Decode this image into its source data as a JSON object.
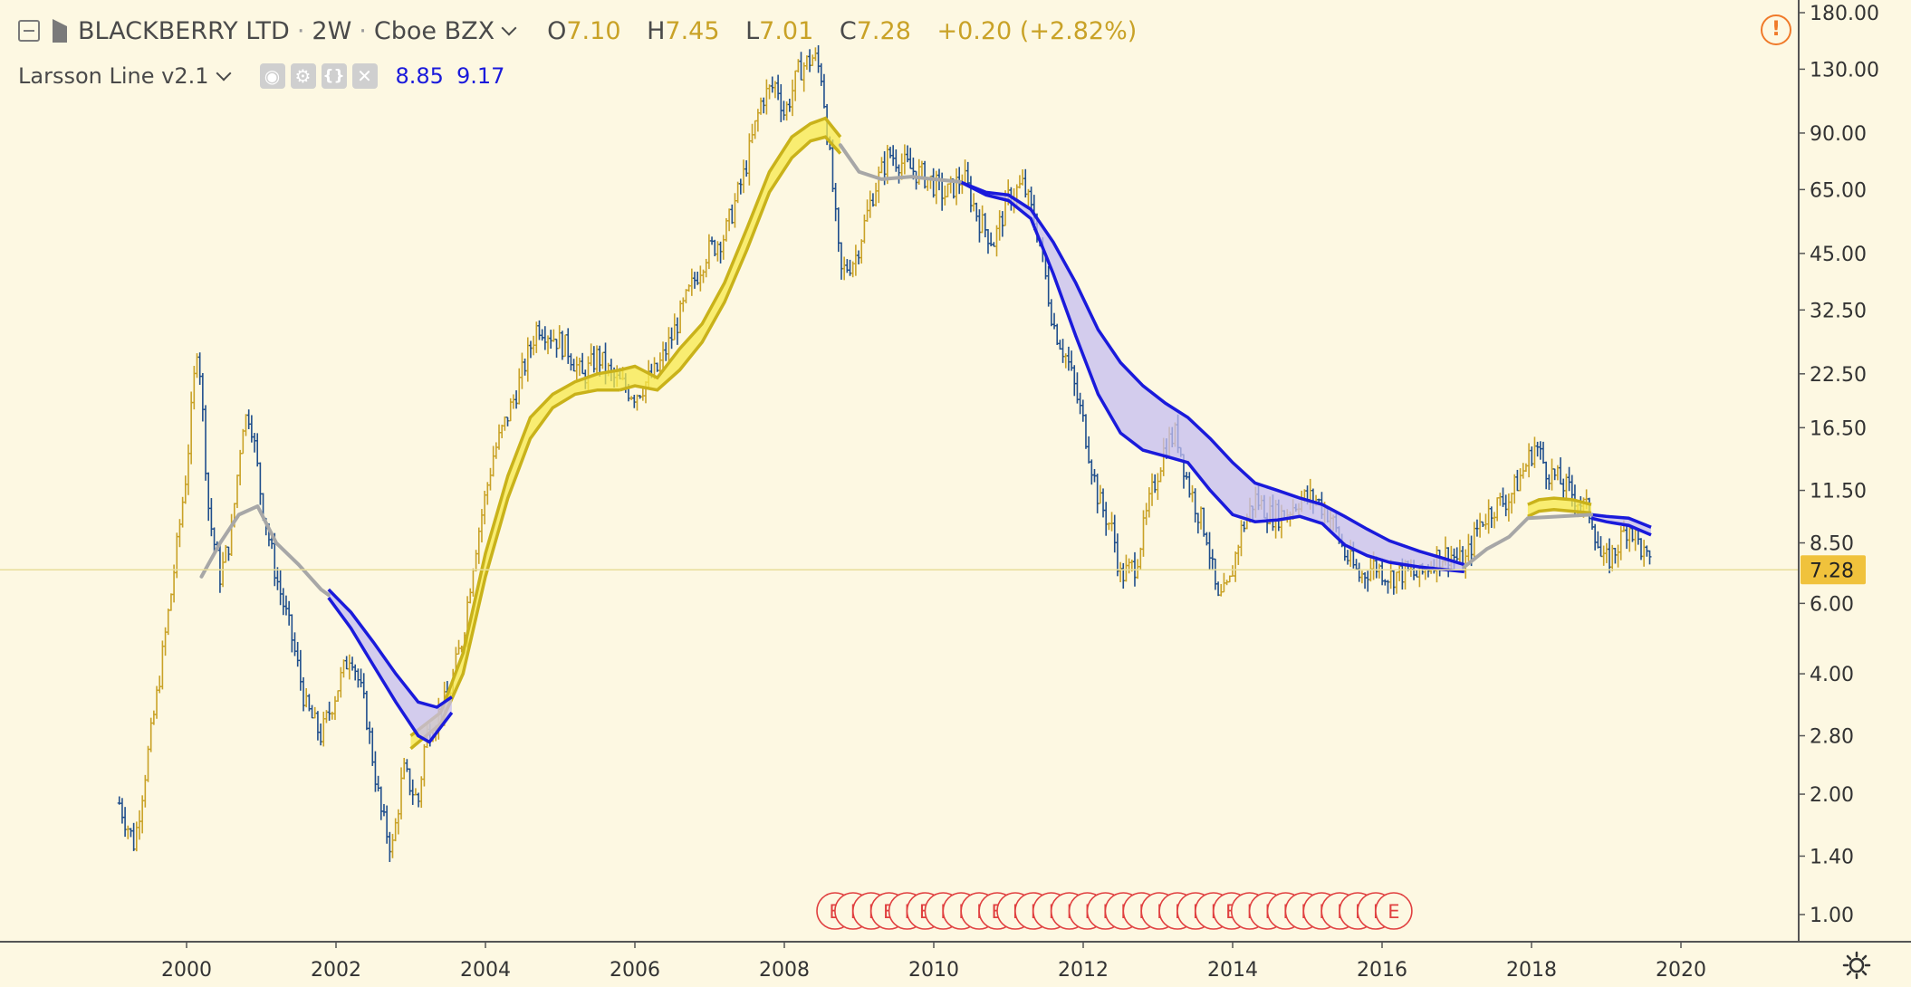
{
  "header": {
    "symbol": "BLACKBERRY LTD",
    "interval": "2W",
    "exchange": "Cboe BZX",
    "open_label": "O",
    "open": "7.10",
    "high_label": "H",
    "high": "7.45",
    "low_label": "L",
    "low": "7.01",
    "close_label": "C",
    "close": "7.28",
    "change": "+0.20 (+2.82%)"
  },
  "indicator": {
    "name": "Larsson Line v2.1",
    "value1": "8.85",
    "value2": "9.17",
    "buttons": [
      "eye-icon",
      "gear-icon",
      "braces-icon",
      "close-icon"
    ]
  },
  "alert_glyph": "!",
  "colors": {
    "background": "#fdf8e2",
    "bull": "#c9a227",
    "bear": "#1f4e8c",
    "yellow_band": "#f7e94b",
    "blue_band": "#1a1adb",
    "gray_line": "#a7a7a7",
    "price_label": "#f0c23c",
    "earnings": "#e04040"
  },
  "chart_data": {
    "type": "candlestick",
    "scale": "log",
    "last_price": "7.28",
    "y_ticks": [
      "180.00",
      "130.00",
      "90.00",
      "65.00",
      "45.00",
      "32.50",
      "22.50",
      "16.50",
      "11.50",
      "8.50",
      "6.00",
      "4.00",
      "2.80",
      "2.00",
      "1.40",
      "1.00"
    ],
    "x_ticks": [
      "2000",
      "2002",
      "2004",
      "2006",
      "2008",
      "2010",
      "2012",
      "2014",
      "2016",
      "2018",
      "2020"
    ],
    "price_path": [
      [
        1999.1,
        1.9
      ],
      [
        1999.3,
        1.5
      ],
      [
        1999.6,
        3.5
      ],
      [
        1999.8,
        6.5
      ],
      [
        2000.0,
        13
      ],
      [
        2000.15,
        28
      ],
      [
        2000.3,
        10
      ],
      [
        2000.45,
        7
      ],
      [
        2000.6,
        9
      ],
      [
        2000.75,
        17
      ],
      [
        2000.85,
        18
      ],
      [
        2001.0,
        11
      ],
      [
        2001.2,
        7
      ],
      [
        2001.4,
        5
      ],
      [
        2001.6,
        3.3
      ],
      [
        2001.8,
        2.8
      ],
      [
        2002.0,
        3.6
      ],
      [
        2002.2,
        4.6
      ],
      [
        2002.4,
        3.2
      ],
      [
        2002.6,
        1.8
      ],
      [
        2002.75,
        1.45
      ],
      [
        2002.9,
        2.3
      ],
      [
        2003.1,
        1.9
      ],
      [
        2003.2,
        2.8
      ],
      [
        2003.5,
        3.5
      ],
      [
        2003.7,
        5
      ],
      [
        2003.85,
        8
      ],
      [
        2004.1,
        14
      ],
      [
        2004.4,
        20
      ],
      [
        2004.7,
        30
      ],
      [
        2004.9,
        28
      ],
      [
        2005.1,
        26
      ],
      [
        2005.3,
        22
      ],
      [
        2005.5,
        25
      ],
      [
        2005.7,
        22
      ],
      [
        2006.0,
        20
      ],
      [
        2006.3,
        23
      ],
      [
        2006.5,
        28
      ],
      [
        2006.7,
        35
      ],
      [
        2006.95,
        45
      ],
      [
        2007.2,
        50
      ],
      [
        2007.45,
        70
      ],
      [
        2007.7,
        110
      ],
      [
        2007.9,
        120
      ],
      [
        2008.0,
        100
      ],
      [
        2008.2,
        130
      ],
      [
        2008.4,
        140
      ],
      [
        2008.5,
        125
      ],
      [
        2008.65,
        65
      ],
      [
        2008.75,
        40
      ],
      [
        2008.95,
        44
      ],
      [
        2009.2,
        65
      ],
      [
        2009.4,
        80
      ],
      [
        2009.7,
        73
      ],
      [
        2009.9,
        70
      ],
      [
        2010.15,
        63
      ],
      [
        2010.4,
        70
      ],
      [
        2010.6,
        55
      ],
      [
        2010.8,
        48
      ],
      [
        2011.0,
        62
      ],
      [
        2011.2,
        67
      ],
      [
        2011.4,
        50
      ],
      [
        2011.6,
        30
      ],
      [
        2011.8,
        24
      ],
      [
        2012.0,
        17
      ],
      [
        2012.2,
        11
      ],
      [
        2012.4,
        9
      ],
      [
        2012.5,
        7
      ],
      [
        2012.7,
        7.5
      ],
      [
        2012.9,
        11
      ],
      [
        2013.1,
        15
      ],
      [
        2013.25,
        16
      ],
      [
        2013.4,
        12
      ],
      [
        2013.55,
        10
      ],
      [
        2013.65,
        9
      ],
      [
        2013.8,
        6
      ],
      [
        2013.95,
        6.6
      ],
      [
        2014.1,
        9
      ],
      [
        2014.3,
        11
      ],
      [
        2014.5,
        10
      ],
      [
        2014.7,
        10
      ],
      [
        2014.9,
        11
      ],
      [
        2015.1,
        11
      ],
      [
        2015.3,
        10
      ],
      [
        2015.5,
        8
      ],
      [
        2015.7,
        7
      ],
      [
        2015.9,
        7.5
      ],
      [
        2016.1,
        7
      ],
      [
        2016.3,
        7.2
      ],
      [
        2016.5,
        7
      ],
      [
        2016.7,
        7.8
      ],
      [
        2016.9,
        8
      ],
      [
        2017.1,
        7.5
      ],
      [
        2017.3,
        9.5
      ],
      [
        2017.5,
        10.5
      ],
      [
        2017.7,
        11
      ],
      [
        2017.9,
        13
      ],
      [
        2018.05,
        15
      ],
      [
        2018.2,
        13
      ],
      [
        2018.4,
        12
      ],
      [
        2018.6,
        11
      ],
      [
        2018.8,
        10
      ],
      [
        2018.95,
        7.5
      ],
      [
        2019.1,
        8
      ],
      [
        2019.3,
        9.5
      ],
      [
        2019.5,
        8
      ],
      [
        2019.6,
        7.28
      ]
    ],
    "yellow_band_upper": [
      [
        2003.0,
        2.8
      ],
      [
        2003.4,
        3.2
      ],
      [
        2003.7,
        4.5
      ],
      [
        2004.0,
        8
      ],
      [
        2004.3,
        12.5
      ],
      [
        2004.6,
        17.5
      ],
      [
        2004.9,
        20
      ],
      [
        2005.2,
        21.5
      ],
      [
        2005.5,
        22.5
      ],
      [
        2005.8,
        23
      ]
    ],
    "yellow_band_lower": [
      [
        2003.0,
        2.6
      ],
      [
        2003.4,
        3.0
      ],
      [
        2003.7,
        4.0
      ],
      [
        2004.0,
        7
      ],
      [
        2004.3,
        11
      ],
      [
        2004.6,
        15.5
      ],
      [
        2004.9,
        18.5
      ],
      [
        2005.2,
        20
      ],
      [
        2005.5,
        20.5
      ],
      [
        2005.8,
        20.5
      ]
    ],
    "yellow_band2_upper": [
      [
        2005.8,
        23
      ],
      [
        2006.0,
        23.5
      ],
      [
        2006.3,
        22
      ],
      [
        2006.6,
        26
      ],
      [
        2006.9,
        30
      ],
      [
        2007.2,
        38
      ],
      [
        2007.5,
        52
      ],
      [
        2007.8,
        72
      ],
      [
        2008.1,
        88
      ],
      [
        2008.35,
        95
      ],
      [
        2008.55,
        98
      ],
      [
        2008.75,
        88
      ]
    ],
    "yellow_band2_lower": [
      [
        2005.8,
        20.5
      ],
      [
        2006.0,
        21
      ],
      [
        2006.3,
        20.5
      ],
      [
        2006.6,
        23
      ],
      [
        2006.9,
        27
      ],
      [
        2007.2,
        34
      ],
      [
        2007.5,
        46
      ],
      [
        2007.8,
        64
      ],
      [
        2008.1,
        78
      ],
      [
        2008.35,
        86
      ],
      [
        2008.55,
        88
      ],
      [
        2008.75,
        80
      ]
    ],
    "yellow_band3_upper": [
      [
        2017.95,
        10.6
      ],
      [
        2018.1,
        10.9
      ],
      [
        2018.3,
        11
      ],
      [
        2018.55,
        10.9
      ],
      [
        2018.8,
        10.6
      ]
    ],
    "yellow_band3_lower": [
      [
        2017.95,
        9.9
      ],
      [
        2018.1,
        10.2
      ],
      [
        2018.3,
        10.3
      ],
      [
        2018.55,
        10.2
      ],
      [
        2018.8,
        10.1
      ]
    ],
    "blue_band_upper": [
      [
        2001.9,
        6.5
      ],
      [
        2002.2,
        5.7
      ],
      [
        2002.5,
        4.8
      ],
      [
        2002.8,
        4
      ],
      [
        2003.1,
        3.4
      ],
      [
        2003.35,
        3.3
      ],
      [
        2003.55,
        3.5
      ]
    ],
    "blue_band_lower": [
      [
        2001.9,
        6.2
      ],
      [
        2002.2,
        5.2
      ],
      [
        2002.5,
        4.2
      ],
      [
        2002.8,
        3.4
      ],
      [
        2003.1,
        2.8
      ],
      [
        2003.25,
        2.7
      ],
      [
        2003.55,
        3.2
      ]
    ],
    "blue_band2_upper": [
      [
        2010.35,
        68
      ],
      [
        2010.7,
        64
      ],
      [
        2011.0,
        63
      ],
      [
        2011.3,
        58
      ],
      [
        2011.6,
        48
      ],
      [
        2011.9,
        38
      ],
      [
        2012.2,
        29
      ],
      [
        2012.5,
        24
      ],
      [
        2012.8,
        21
      ],
      [
        2013.1,
        19
      ],
      [
        2013.4,
        17.5
      ],
      [
        2013.7,
        15.5
      ],
      [
        2014.0,
        13.5
      ],
      [
        2014.3,
        12
      ],
      [
        2014.6,
        11.5
      ],
      [
        2014.9,
        11
      ],
      [
        2015.2,
        10.6
      ],
      [
        2015.5,
        9.9
      ],
      [
        2015.8,
        9.2
      ],
      [
        2016.1,
        8.6
      ],
      [
        2016.5,
        8.1
      ],
      [
        2016.8,
        7.8
      ],
      [
        2017.1,
        7.5
      ]
    ],
    "blue_band2_lower": [
      [
        2010.35,
        68
      ],
      [
        2010.7,
        63
      ],
      [
        2011.0,
        61
      ],
      [
        2011.3,
        55
      ],
      [
        2011.6,
        40
      ],
      [
        2011.9,
        28
      ],
      [
        2012.2,
        20
      ],
      [
        2012.5,
        16
      ],
      [
        2012.8,
        14.5
      ],
      [
        2013.1,
        14
      ],
      [
        2013.4,
        13.5
      ],
      [
        2013.7,
        11.5
      ],
      [
        2014.0,
        10
      ],
      [
        2014.3,
        9.6
      ],
      [
        2014.6,
        9.7
      ],
      [
        2014.9,
        9.9
      ],
      [
        2015.2,
        9.5
      ],
      [
        2015.5,
        8.4
      ],
      [
        2015.8,
        7.9
      ],
      [
        2016.1,
        7.6
      ],
      [
        2016.5,
        7.4
      ],
      [
        2016.8,
        7.3
      ],
      [
        2017.1,
        7.2
      ]
    ],
    "blue_band3_upper": [
      [
        2018.8,
        10.0
      ],
      [
        2019.0,
        9.9
      ],
      [
        2019.3,
        9.8
      ],
      [
        2019.6,
        9.3
      ]
    ],
    "blue_band3_lower": [
      [
        2018.8,
        9.8
      ],
      [
        2019.0,
        9.6
      ],
      [
        2019.3,
        9.4
      ],
      [
        2019.6,
        8.9
      ]
    ],
    "gray_line": [
      [
        2000.2,
        7
      ],
      [
        2000.45,
        8.5
      ],
      [
        2000.7,
        10
      ],
      [
        2000.95,
        10.5
      ],
      [
        2001.2,
        8.5
      ],
      [
        2001.5,
        7.5
      ],
      [
        2001.8,
        6.5
      ],
      [
        2001.9,
        6.3
      ],
      [
        2008.75,
        84
      ],
      [
        2009.0,
        72
      ],
      [
        2009.3,
        69
      ],
      [
        2009.7,
        70
      ],
      [
        2010.0,
        69
      ],
      [
        2010.35,
        68
      ],
      [
        2017.1,
        7.4
      ],
      [
        2017.4,
        8.2
      ],
      [
        2017.7,
        8.8
      ],
      [
        2017.95,
        9.8
      ],
      [
        2018.8,
        10.0
      ]
    ],
    "earnings_marker_count": 32,
    "earnings_markers": [
      "E",
      "I",
      "I",
      "E",
      "I",
      "E",
      "I",
      "I",
      "I",
      "E",
      "I",
      "I",
      "I",
      "I",
      "I",
      "I",
      "I",
      "I",
      "I",
      "I",
      "I",
      "I",
      "E",
      "I",
      "I",
      "I",
      "I",
      "I",
      "I",
      "I",
      "I",
      "E"
    ]
  }
}
